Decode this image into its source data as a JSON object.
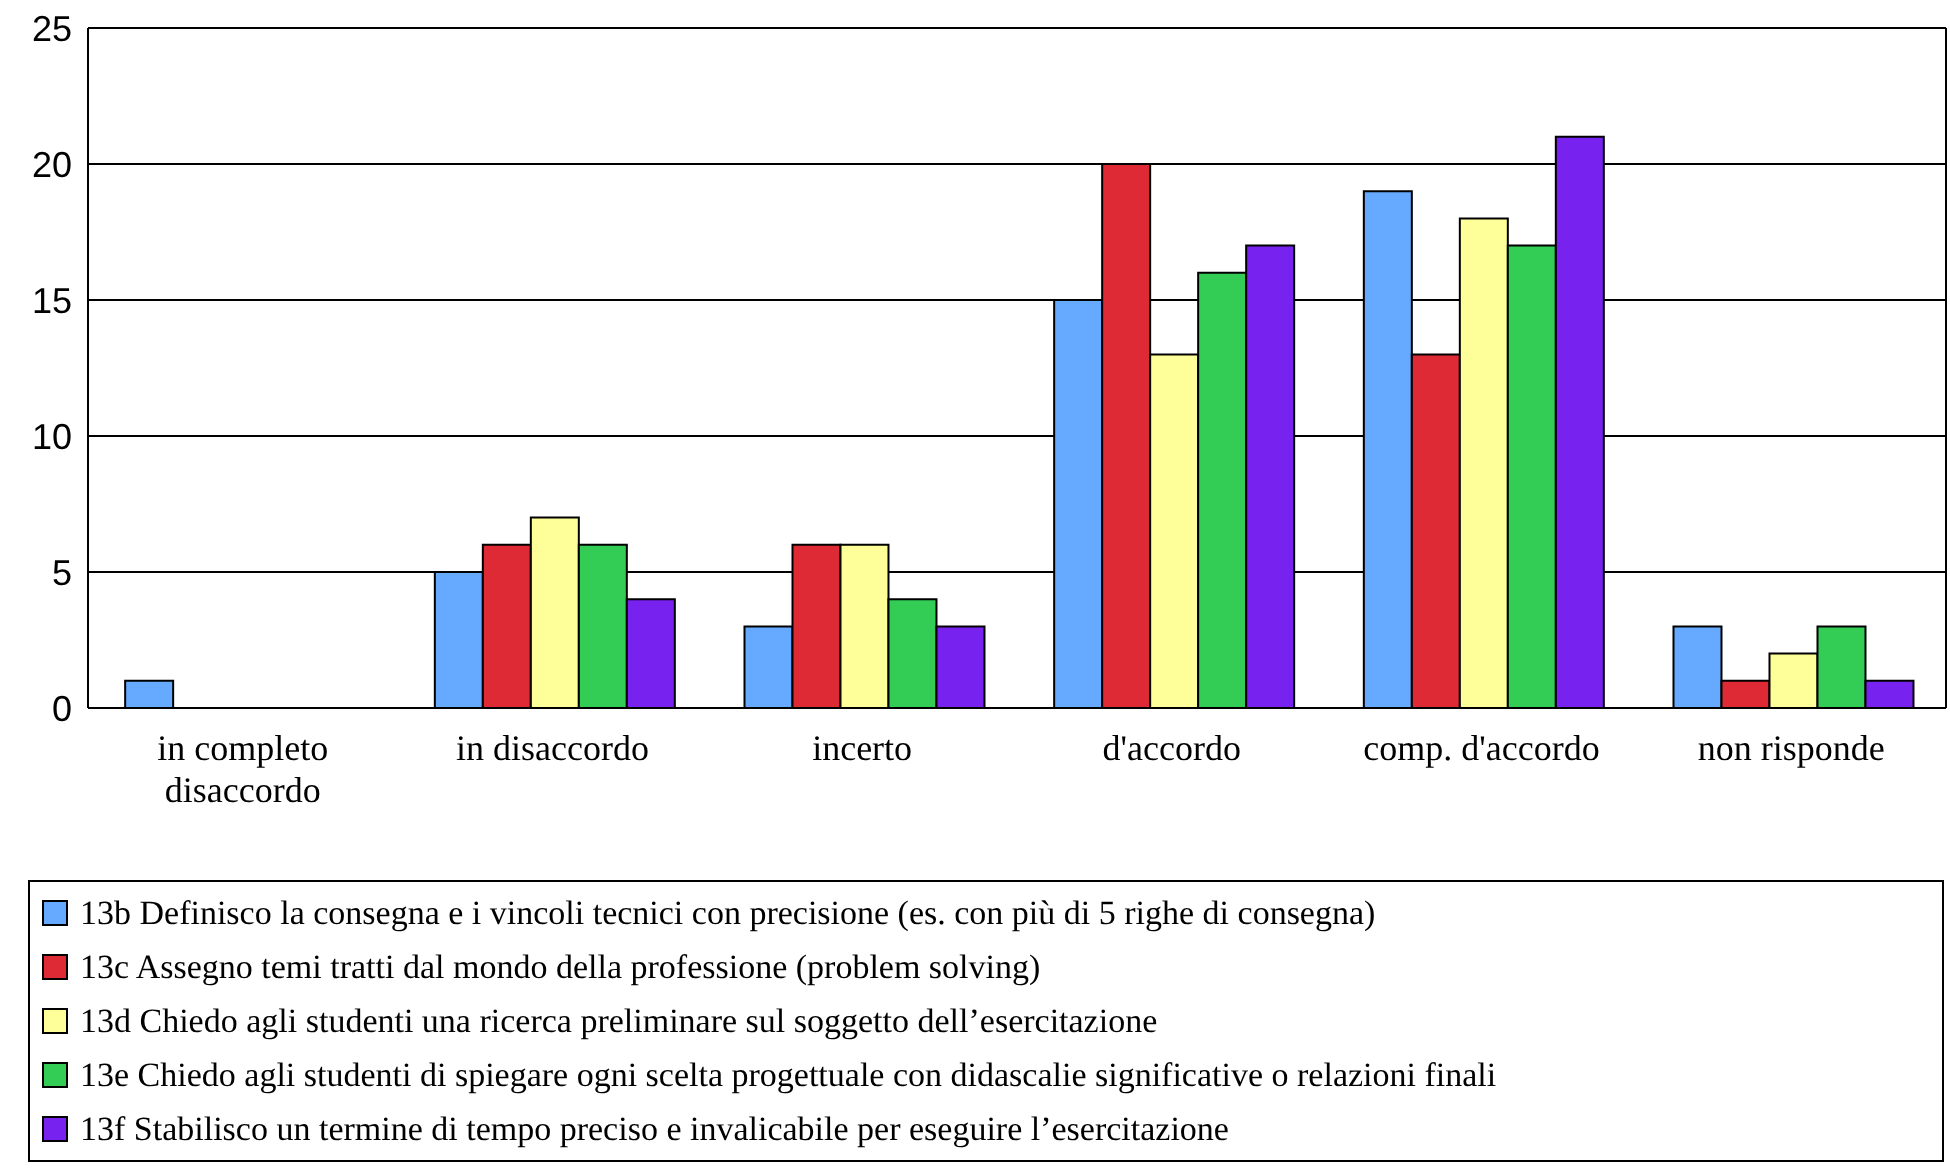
{
  "chart_data": {
    "type": "bar",
    "categories": [
      "in completo disaccordo",
      "in disaccordo",
      "incerto",
      "d'accordo",
      "comp. d'accordo",
      "non risponde"
    ],
    "series": [
      {
        "name": "13b Definisco la consegna e i vincoli tecnici con precisione (es. con più di 5 righe di consegna)",
        "color": "#66aaff",
        "values": [
          1,
          5,
          3,
          15,
          19,
          3
        ]
      },
      {
        "name": "13c Assegno temi tratti dal mondo della professione (problem solving)",
        "color": "#dd2a35",
        "values": [
          0,
          6,
          6,
          20,
          13,
          1
        ]
      },
      {
        "name": "13d Chiedo agli studenti una ricerca preliminare sul soggetto dell’esercitazione",
        "color": "#ffff99",
        "values": [
          0,
          7,
          6,
          13,
          18,
          2
        ]
      },
      {
        "name": "13e Chiedo agli studenti di spiegare ogni scelta progettuale con didascalie significative o relazioni finali",
        "color": "#33cc55",
        "values": [
          0,
          6,
          4,
          16,
          17,
          3
        ]
      },
      {
        "name": "13f Stabilisco un termine di tempo preciso e invalicabile per eseguire l’esercitazione",
        "color": "#7722ee",
        "values": [
          0,
          4,
          3,
          17,
          21,
          1
        ]
      }
    ],
    "ylim": [
      0,
      25
    ],
    "yticks": [
      0,
      5,
      10,
      15,
      20,
      25
    ],
    "grid": "y",
    "legend": "bottom"
  }
}
